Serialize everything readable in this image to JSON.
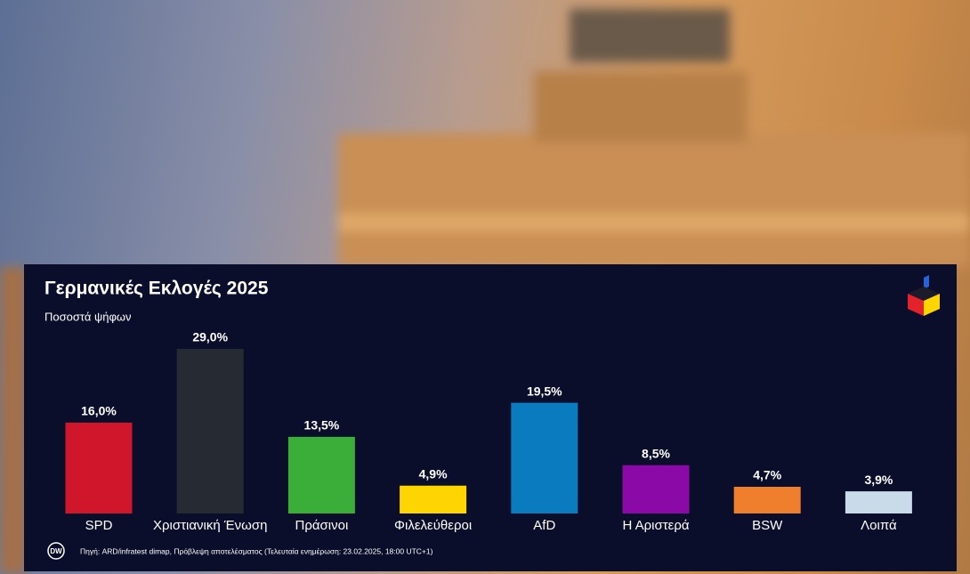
{
  "chart_data": {
    "type": "bar",
    "title": "Γερμανικές Εκλογές 2025",
    "subtitle": "Ποσοστά ψήφων",
    "categories": [
      "SPD",
      "Χριστιανική Ένωση",
      "Πράσινοι",
      "Φιλελεύθεροι",
      "AfD",
      "Η Αριστερά",
      "BSW",
      "Λοιπά"
    ],
    "values": [
      16.0,
      29.0,
      13.5,
      4.9,
      19.5,
      8.5,
      4.7,
      3.9
    ],
    "value_labels": [
      "16,0%",
      "29,0%",
      "13,5%",
      "4,9%",
      "19,5%",
      "8,5%",
      "4,7%",
      "3,9%"
    ],
    "colors": [
      "#d0162a",
      "#262b33",
      "#3aae38",
      "#ffd500",
      "#0a7bbf",
      "#8b0aa7",
      "#f07f2d",
      "#c9dbe8"
    ],
    "source": "Πηγή: ARD/infratest dimap, Πρόβλεψη αποτελέσματος (Τελευταία ενημέρωση: 23.02.2025, 18:00 UTC+1)",
    "logo_text": "DW"
  }
}
